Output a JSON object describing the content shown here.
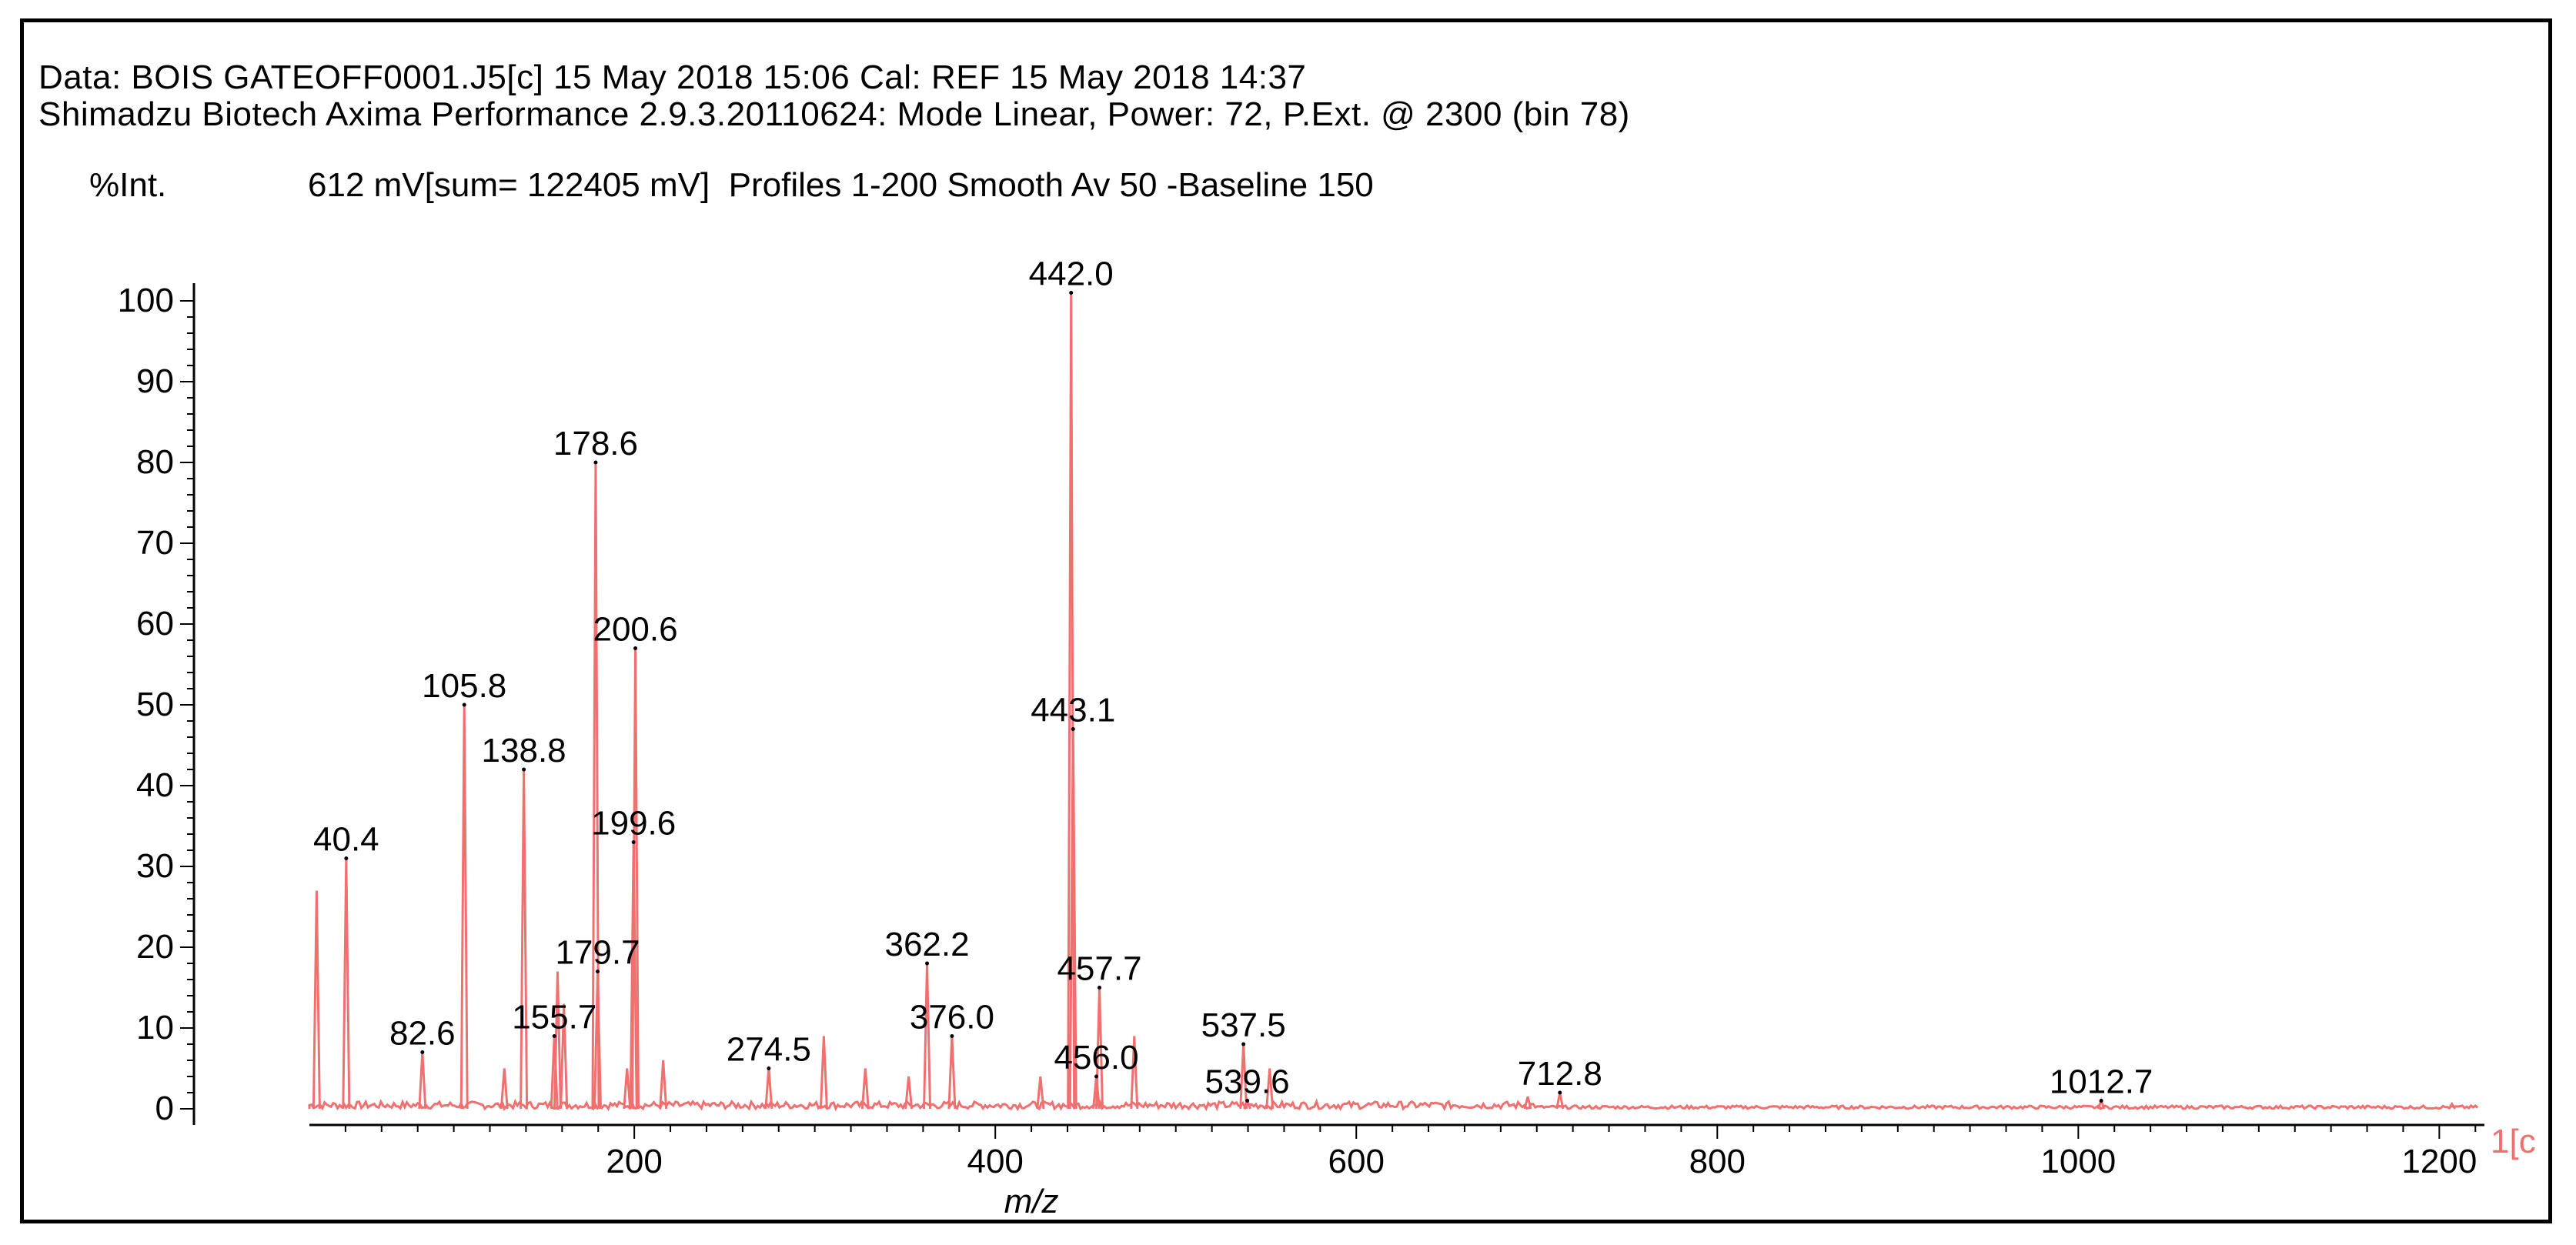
{
  "header": {
    "line1": "Data: BOIS GATEOFF0001.J5[c] 15 May 2018 15:06 Cal: REF 15 May 2018 14:37",
    "line2": "Shimadzu Biotech Axima Performance 2.9.3.20110624: Mode Linear, Power: 72, P.Ext. @ 2300 (bin 78)",
    "intensity_label": "%Int.",
    "profile_info": "612 mV[sum= 122405 mV]  Profiles 1-200 Smooth Av 50 -Baseline 150"
  },
  "chart_data": {
    "type": "line",
    "title": "",
    "xlabel": "m/z",
    "ylabel": "%Int.",
    "xlim": [
      20,
      1225
    ],
    "ylim": [
      -2,
      102
    ],
    "x_ticks": [
      200,
      400,
      600,
      800,
      1000,
      1200
    ],
    "y_ticks": [
      0,
      10,
      20,
      30,
      40,
      50,
      60,
      70,
      80,
      90,
      100
    ],
    "series_marker": "1[c",
    "line_color": "#f07070",
    "peaks": [
      {
        "x": 24.0,
        "y": 27
      },
      {
        "x": 40.4,
        "y": 31,
        "label": "40.4"
      },
      {
        "x": 82.6,
        "y": 7,
        "label": "82.6"
      },
      {
        "x": 105.8,
        "y": 50,
        "label": "105.8"
      },
      {
        "x": 128.0,
        "y": 5
      },
      {
        "x": 138.8,
        "y": 42,
        "label": "138.8"
      },
      {
        "x": 155.7,
        "y": 9,
        "label": "155.7"
      },
      {
        "x": 157.5,
        "y": 17
      },
      {
        "x": 161.0,
        "y": 13
      },
      {
        "x": 178.6,
        "y": 80,
        "label": "178.6"
      },
      {
        "x": 179.7,
        "y": 17,
        "label": "179.7"
      },
      {
        "x": 196.0,
        "y": 5
      },
      {
        "x": 199.6,
        "y": 33,
        "label": "199.6"
      },
      {
        "x": 200.6,
        "y": 57,
        "label": "200.6"
      },
      {
        "x": 216.0,
        "y": 6
      },
      {
        "x": 274.5,
        "y": 5,
        "label": "274.5"
      },
      {
        "x": 305.0,
        "y": 9
      },
      {
        "x": 328.0,
        "y": 5
      },
      {
        "x": 352.0,
        "y": 4
      },
      {
        "x": 362.2,
        "y": 18,
        "label": "362.2"
      },
      {
        "x": 376.0,
        "y": 9,
        "label": "376.0"
      },
      {
        "x": 425.0,
        "y": 4
      },
      {
        "x": 442.0,
        "y": 101,
        "label": "442.0"
      },
      {
        "x": 443.1,
        "y": 47,
        "label": "443.1"
      },
      {
        "x": 456.0,
        "y": 4,
        "label": "456.0"
      },
      {
        "x": 457.7,
        "y": 15,
        "label": "457.7"
      },
      {
        "x": 477.0,
        "y": 9
      },
      {
        "x": 537.5,
        "y": 8,
        "label": "537.5"
      },
      {
        "x": 539.6,
        "y": 1,
        "label": "539.6"
      },
      {
        "x": 552.0,
        "y": 5
      },
      {
        "x": 695.0,
        "y": 1.5
      },
      {
        "x": 712.8,
        "y": 2,
        "label": "712.8"
      },
      {
        "x": 1012.7,
        "y": 1,
        "label": "1012.7"
      },
      {
        "x": 1207.0,
        "y": 0.6
      }
    ]
  }
}
